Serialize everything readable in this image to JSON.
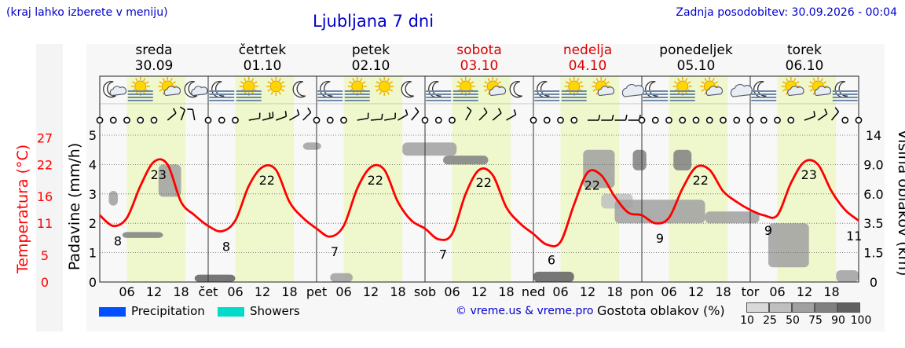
{
  "header": {
    "left_note": "(kraj lahko izberete v meniju)",
    "title": "Ljubljana 7 dni",
    "updated": "Zadnja posodobitev: 30.09.2026 - 00:04"
  },
  "legend": {
    "precipitation_label": "Precipitation",
    "showers_label": "Showers",
    "precipitation_color": "#0050ff",
    "showers_color": "#00dcc8",
    "credit": "© vreme.us & vreme.pro",
    "density_label": "Gostota oblakov (%)",
    "density_levels": [
      "10",
      "25",
      "50",
      "75",
      "90",
      "100"
    ],
    "density_colors": [
      "#d9d9d9",
      "#bfbfbf",
      "#a0a0a0",
      "#808080",
      "#606060",
      "#404040"
    ]
  },
  "days": [
    {
      "name": "sreda",
      "date": "30.09",
      "short": "",
      "weekend": false
    },
    {
      "name": "četrtek",
      "date": "01.10",
      "short": "čet",
      "weekend": false
    },
    {
      "name": "petek",
      "date": "02.10",
      "short": "pet",
      "weekend": false
    },
    {
      "name": "sobota",
      "date": "03.10",
      "short": "sob",
      "weekend": true
    },
    {
      "name": "nedelja",
      "date": "04.10",
      "short": "ned",
      "weekend": true
    },
    {
      "name": "ponedeljek",
      "date": "05.10",
      "short": "pon",
      "weekend": false
    },
    {
      "name": "torek",
      "date": "06.10",
      "short": "tor",
      "weekend": false
    }
  ],
  "chart_data": {
    "type": "line",
    "x_tick_hours": [
      "06",
      "12",
      "18"
    ],
    "left_axis_temp": {
      "label": "Temperatura (°C)",
      "ticks": [
        0,
        5,
        11,
        16,
        22,
        27
      ],
      "color": "#ff0000"
    },
    "left_axis_precip": {
      "label": "Padavine (mm/h)",
      "ticks": [
        0,
        1,
        2,
        3,
        4,
        5
      ],
      "ylim": [
        0,
        5
      ]
    },
    "right_axis_cloud": {
      "label": "Višina oblakov (km)",
      "ticks": [
        "0",
        "1.5",
        "3.5",
        "6.0",
        "9.0",
        "14"
      ]
    },
    "temperature": {
      "color": "#ff0000",
      "points": [
        [
          0,
          12.5
        ],
        [
          3,
          10.5
        ],
        [
          6,
          12
        ],
        [
          9,
          18
        ],
        [
          12,
          22.5
        ],
        [
          15,
          22
        ],
        [
          18,
          15
        ],
        [
          21,
          12.5
        ],
        [
          24,
          10.5
        ],
        [
          27,
          9.5
        ],
        [
          30,
          11.5
        ],
        [
          33,
          18
        ],
        [
          36,
          21.5
        ],
        [
          39,
          21
        ],
        [
          42,
          15
        ],
        [
          45,
          12
        ],
        [
          48,
          10
        ],
        [
          51,
          8.5
        ],
        [
          54,
          10.5
        ],
        [
          57,
          17.5
        ],
        [
          60,
          21.5
        ],
        [
          63,
          21
        ],
        [
          66,
          15
        ],
        [
          69,
          11.5
        ],
        [
          72,
          10
        ],
        [
          75,
          8
        ],
        [
          78,
          9
        ],
        [
          81,
          16.5
        ],
        [
          84,
          21
        ],
        [
          87,
          20
        ],
        [
          90,
          14
        ],
        [
          93,
          11
        ],
        [
          96,
          9
        ],
        [
          99,
          7
        ],
        [
          102,
          7.5
        ],
        [
          105,
          14.5
        ],
        [
          108,
          20.5
        ],
        [
          111,
          20
        ],
        [
          114,
          16
        ],
        [
          117,
          13
        ],
        [
          120,
          12.5
        ],
        [
          123,
          11
        ],
        [
          126,
          12
        ],
        [
          129,
          17.5
        ],
        [
          132,
          21.5
        ],
        [
          135,
          21
        ],
        [
          138,
          17
        ],
        [
          141,
          15
        ],
        [
          144,
          13.5
        ],
        [
          147,
          12.5
        ],
        [
          150,
          12.5
        ],
        [
          153,
          18.5
        ],
        [
          156,
          22.5
        ],
        [
          159,
          22
        ],
        [
          162,
          17
        ],
        [
          165,
          13.5
        ],
        [
          168,
          11.5
        ]
      ]
    },
    "temperature_labels": [
      {
        "hour": 4,
        "text": "8"
      },
      {
        "hour": 13,
        "text": "23"
      },
      {
        "hour": 28,
        "text": "8"
      },
      {
        "hour": 37,
        "text": "22"
      },
      {
        "hour": 52,
        "text": "7"
      },
      {
        "hour": 61,
        "text": "22"
      },
      {
        "hour": 76,
        "text": "7"
      },
      {
        "hour": 85,
        "text": "22"
      },
      {
        "hour": 100,
        "text": "6"
      },
      {
        "hour": 109,
        "text": "22"
      },
      {
        "hour": 124,
        "text": "9"
      },
      {
        "hour": 133,
        "text": "22"
      },
      {
        "hour": 148,
        "text": "9"
      },
      {
        "hour": 157,
        "text": "23"
      },
      {
        "hour": 167,
        "text": "11"
      }
    ],
    "precipitation": [],
    "cloud_patches": [
      {
        "h0": 2,
        "h1": 4,
        "z0": 2.6,
        "z1": 3.1,
        "d": 50
      },
      {
        "h0": 5,
        "h1": 14,
        "z0": 1.5,
        "z1": 1.7,
        "d": 75
      },
      {
        "h0": 13,
        "h1": 18,
        "z0": 2.9,
        "z1": 4.0,
        "d": 50
      },
      {
        "h0": 21,
        "h1": 30,
        "z0": 0.0,
        "z1": 0.25,
        "d": 90
      },
      {
        "h0": 45,
        "h1": 49,
        "z0": 4.5,
        "z1": 4.75,
        "d": 50
      },
      {
        "h0": 51,
        "h1": 56,
        "z0": 0.0,
        "z1": 0.3,
        "d": 50
      },
      {
        "h0": 67,
        "h1": 79,
        "z0": 4.3,
        "z1": 4.75,
        "d": 50
      },
      {
        "h0": 76,
        "h1": 86,
        "z0": 4.0,
        "z1": 4.3,
        "d": 75
      },
      {
        "h0": 96,
        "h1": 105,
        "z0": 0.0,
        "z1": 0.35,
        "d": 90
      },
      {
        "h0": 107,
        "h1": 114,
        "z0": 3.2,
        "z1": 4.5,
        "d": 50
      },
      {
        "h0": 111,
        "h1": 118,
        "z0": 2.5,
        "z1": 3.0,
        "d": 25
      },
      {
        "h0": 114,
        "h1": 134,
        "z0": 2.0,
        "z1": 2.8,
        "d": 50
      },
      {
        "h0": 118,
        "h1": 121,
        "z0": 3.8,
        "z1": 4.5,
        "d": 75
      },
      {
        "h0": 127,
        "h1": 131,
        "z0": 3.8,
        "z1": 4.5,
        "d": 75
      },
      {
        "h0": 134,
        "h1": 146,
        "z0": 2.0,
        "z1": 2.4,
        "d": 50
      },
      {
        "h0": 148,
        "h1": 157,
        "z0": 0.5,
        "z1": 2.0,
        "d": 50
      },
      {
        "h0": 163,
        "h1": 168,
        "z0": 0.0,
        "z1": 0.4,
        "d": 50
      }
    ]
  },
  "weather_icons": [
    "moon-cloud",
    "sun-fog",
    "sun-cloud",
    "moon-cloud",
    "moon-fog",
    "sun-fog",
    "sun",
    "moon",
    "moon-fog",
    "sun-fog",
    "sun",
    "moon",
    "moon-fog",
    "sun-fog",
    "sun-cloud",
    "moon",
    "moon-fog",
    "sun-fog",
    "sun-cloud",
    "cloud",
    "moon-fog",
    "sun-fog",
    "sun-cloud",
    "cloud",
    "moon-fog",
    "sun-cloud",
    "sun-cloud",
    "moon-fog"
  ],
  "wind": [
    {
      "h": 0,
      "calm": true
    },
    {
      "h": 3,
      "calm": true
    },
    {
      "h": 6,
      "calm": true
    },
    {
      "h": 9,
      "calm": true
    },
    {
      "h": 12,
      "calm": true
    },
    {
      "h": 15,
      "dir": 50,
      "s": 1
    },
    {
      "h": 18,
      "dir": 20,
      "s": 1
    },
    {
      "h": 21,
      "dir": 350,
      "s": 1
    },
    {
      "h": 24,
      "calm": true
    },
    {
      "h": 27,
      "calm": true
    },
    {
      "h": 30,
      "calm": true
    },
    {
      "h": 33,
      "dir": 80,
      "s": 1
    },
    {
      "h": 36,
      "dir": 75,
      "s": 2
    },
    {
      "h": 39,
      "dir": 70,
      "s": 1
    },
    {
      "h": 42,
      "dir": 60,
      "s": 1
    },
    {
      "h": 45,
      "dir": 45,
      "s": 1
    },
    {
      "h": 48,
      "calm": true
    },
    {
      "h": 51,
      "calm": true
    },
    {
      "h": 54,
      "calm": true
    },
    {
      "h": 57,
      "dir": 80,
      "s": 1
    },
    {
      "h": 60,
      "dir": 85,
      "s": 1
    },
    {
      "h": 63,
      "dir": 80,
      "s": 1
    },
    {
      "h": 66,
      "dir": 60,
      "s": 1
    },
    {
      "h": 69,
      "dir": 40,
      "s": 1
    },
    {
      "h": 72,
      "calm": true
    },
    {
      "h": 75,
      "calm": true
    },
    {
      "h": 78,
      "calm": true
    },
    {
      "h": 81,
      "dir": 30,
      "s": 1
    },
    {
      "h": 84,
      "dir": 45,
      "s": 1
    },
    {
      "h": 87,
      "dir": 50,
      "s": 1
    },
    {
      "h": 90,
      "dir": 60,
      "s": 1
    },
    {
      "h": 96,
      "calm": true
    },
    {
      "h": 99,
      "calm": true
    },
    {
      "h": 102,
      "calm": true
    },
    {
      "h": 105,
      "calm": true
    },
    {
      "h": 108,
      "dir": 90,
      "s": 1
    },
    {
      "h": 111,
      "dir": 90,
      "s": 1
    },
    {
      "h": 114,
      "dir": 90,
      "s": 1
    },
    {
      "h": 117,
      "dir": 90,
      "s": 1
    },
    {
      "h": 120,
      "calm": true
    },
    {
      "h": 123,
      "calm": true
    },
    {
      "h": 126,
      "calm": true
    },
    {
      "h": 129,
      "calm": true
    },
    {
      "h": 132,
      "calm": true
    },
    {
      "h": 135,
      "calm": true
    },
    {
      "h": 138,
      "calm": true
    },
    {
      "h": 141,
      "calm": true
    },
    {
      "h": 144,
      "calm": true
    },
    {
      "h": 147,
      "calm": true
    },
    {
      "h": 150,
      "calm": true
    },
    {
      "h": 153,
      "calm": true
    },
    {
      "h": 156,
      "dir": 70,
      "s": 1
    },
    {
      "h": 159,
      "dir": 55,
      "s": 1
    },
    {
      "h": 162,
      "dir": 40,
      "s": 1
    },
    {
      "h": 165,
      "calm": true
    },
    {
      "h": 168,
      "calm": true
    }
  ]
}
